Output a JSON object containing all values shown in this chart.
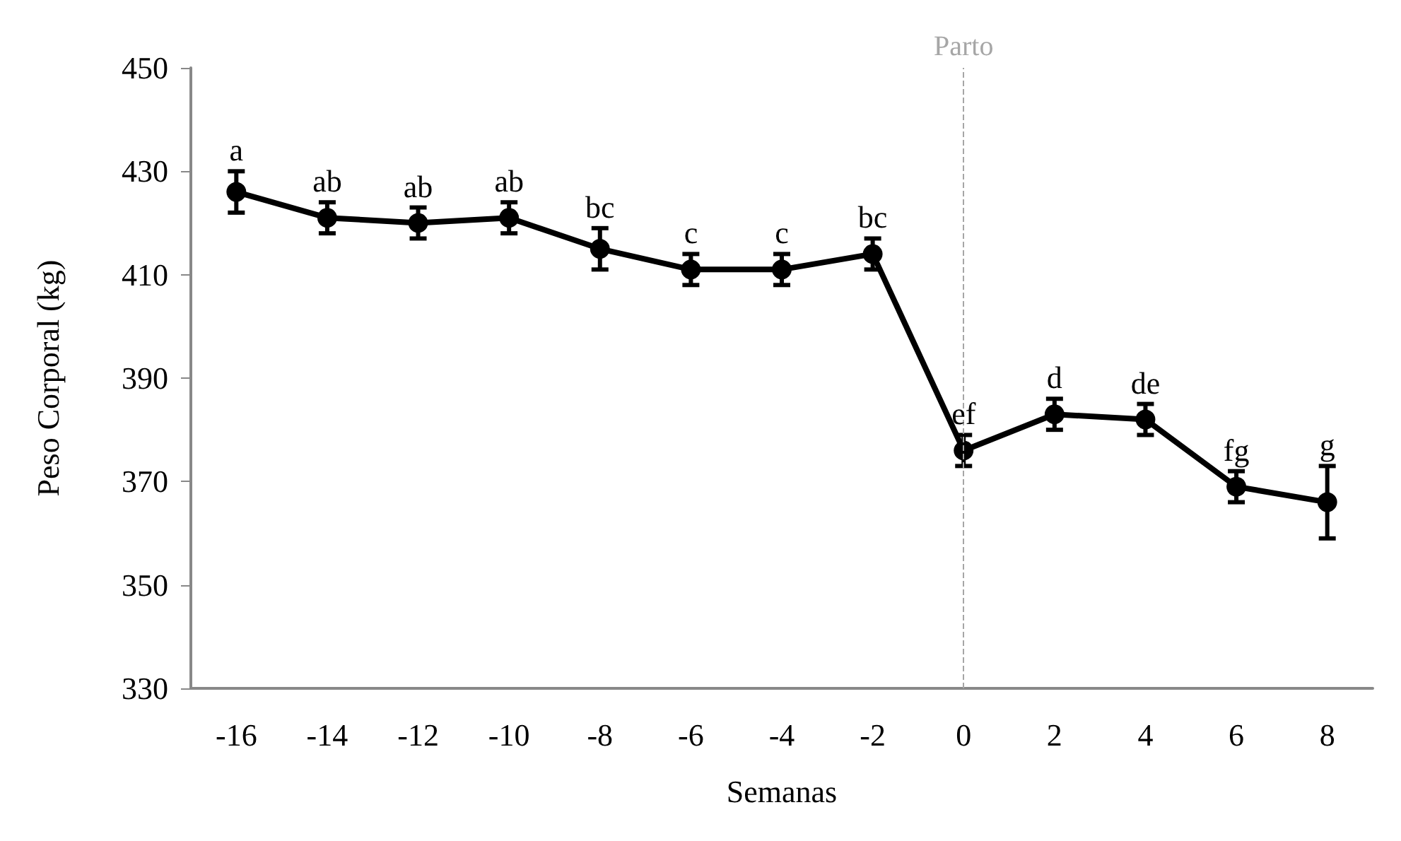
{
  "chart_data": {
    "type": "line",
    "xlabel": "Semanas",
    "ylabel": "Peso Corporal (kg)",
    "categories": [
      "-16",
      "-14",
      "-12",
      "-10",
      "-8",
      "-6",
      "-4",
      "-2",
      "0",
      "2",
      "4",
      "6",
      "8"
    ],
    "series": [
      {
        "color": "#000000",
        "values": [
          426,
          421,
          420,
          421,
          415,
          411,
          411,
          414,
          376,
          383,
          382,
          369,
          366
        ],
        "errors": [
          4,
          3,
          3,
          3,
          4,
          3,
          3,
          3,
          3,
          3,
          3,
          3,
          7
        ]
      }
    ],
    "ylim": [
      330,
      450
    ],
    "yticks": [
      330,
      350,
      370,
      390,
      410,
      430,
      450
    ],
    "grid": false,
    "marker": "circle",
    "line_style": "solid",
    "ref_lines": [
      {
        "axis": "x",
        "value": "0",
        "label": "Parto",
        "color": "#a6a6a6",
        "line_style": "dashed"
      }
    ],
    "annotations": [
      {
        "text": "a",
        "x": "-16",
        "y": 430
      },
      {
        "text": "ab",
        "x": "-14",
        "y": 424
      },
      {
        "text": "ab",
        "x": "-12",
        "y": 423
      },
      {
        "text": "ab",
        "x": "-10",
        "y": 424
      },
      {
        "text": "bc",
        "x": "-8",
        "y": 419
      },
      {
        "text": "c",
        "x": "-6",
        "y": 414
      },
      {
        "text": "c",
        "x": "-4",
        "y": 414
      },
      {
        "text": "bc",
        "x": "-2",
        "y": 417
      },
      {
        "text": "ef",
        "x": "0",
        "y": 379
      },
      {
        "text": "d",
        "x": "2",
        "y": 386
      },
      {
        "text": "de",
        "x": "4",
        "y": 385
      },
      {
        "text": "fg",
        "x": "6",
        "y": 372
      },
      {
        "text": "g",
        "x": "8",
        "y": 373
      }
    ]
  }
}
